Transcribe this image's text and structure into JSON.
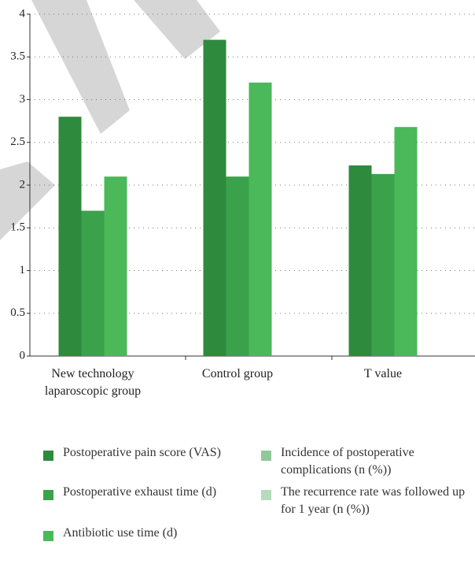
{
  "chart_data": {
    "type": "bar",
    "categories": [
      "New technology laparoscopic group",
      "Control group",
      "T value"
    ],
    "series": [
      {
        "name": "Postoperative pain score (VAS)",
        "color": "#2e8a3c",
        "values": [
          2.8,
          3.7,
          2.23
        ]
      },
      {
        "name": "Postoperative exhaust time (d)",
        "color": "#3aa24a",
        "values": [
          1.7,
          2.1,
          2.13
        ]
      },
      {
        "name": "Antibiotic use time (d)",
        "color": "#4bb85a",
        "values": [
          2.1,
          3.2,
          2.68
        ]
      },
      {
        "name": "Incidence of postoperative complications (n (%))",
        "color": "#8ec99b",
        "values": [
          null,
          null,
          null
        ]
      },
      {
        "name": "The recurrence rate was followed up for 1 year (n (%))",
        "color": "#b5dcbd",
        "values": [
          null,
          null,
          null
        ]
      }
    ],
    "ylim": [
      0,
      4
    ],
    "yticks": [
      0,
      0.5,
      1,
      1.5,
      2,
      2.5,
      3,
      3.5,
      4
    ],
    "grid": true
  }
}
